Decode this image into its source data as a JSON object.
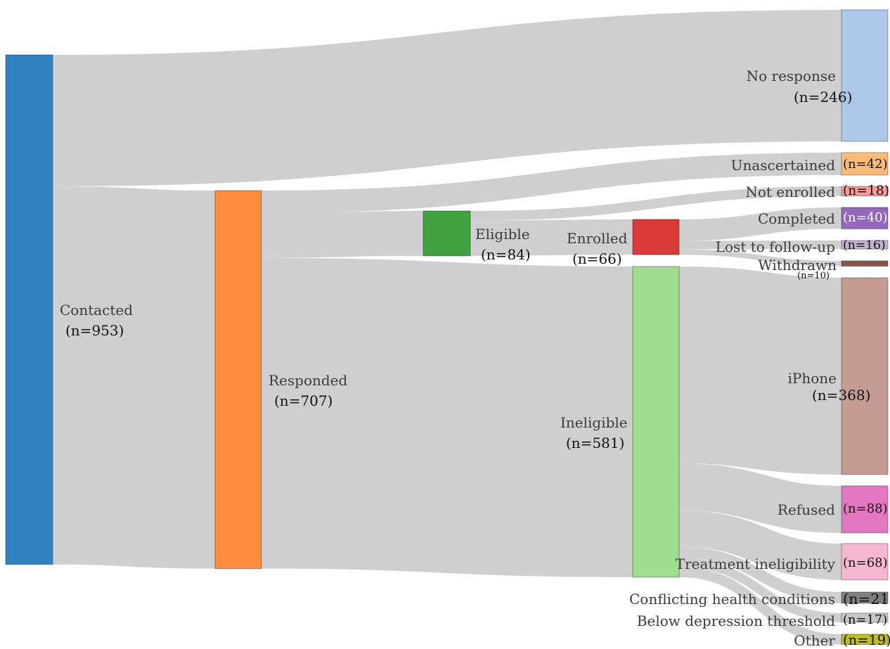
{
  "diagram": {
    "type": "sankey",
    "nodes": [
      {
        "id": "contacted",
        "label": "Contacted",
        "count": "(n=953)",
        "value": 953,
        "color": "#3182bd"
      },
      {
        "id": "responded",
        "label": "Responded",
        "count": "(n=707)",
        "value": 707,
        "color": "#fd8d3c"
      },
      {
        "id": "eligible",
        "label": "Eligible",
        "count": "(n=84)",
        "value": 84,
        "color": "#41a040"
      },
      {
        "id": "enrolled",
        "label": "Enrolled",
        "count": "(n=66)",
        "value": 66,
        "color": "#d83a3a"
      },
      {
        "id": "ineligible",
        "label": "Ineligible",
        "count": "(n=581)",
        "value": 581,
        "color": "#a1dd90"
      },
      {
        "id": "no_response",
        "label": "No response",
        "count": "(n=246)",
        "value": 246,
        "color": "#aec7e8"
      },
      {
        "id": "unascertained",
        "label": "Unascertained",
        "count": "(n=42)",
        "value": 42,
        "color": "#ffbb78"
      },
      {
        "id": "not_enrolled",
        "label": "Not enrolled",
        "count": "(n=18)",
        "value": 18,
        "color": "#ff9896"
      },
      {
        "id": "completed",
        "label": "Completed",
        "count": "(n=40)",
        "value": 40,
        "color": "#9467bd"
      },
      {
        "id": "lost",
        "label": "Lost to follow-up",
        "count": "(n=16)",
        "value": 16,
        "color": "#c5b0d5"
      },
      {
        "id": "withdrawn",
        "label": "Withdrawn",
        "count": "(n=10)",
        "value": 10,
        "color": "#8c564b"
      },
      {
        "id": "iphone",
        "label": "iPhone",
        "count": "(n=368)",
        "value": 368,
        "color": "#c49c94"
      },
      {
        "id": "refused",
        "label": "Refused",
        "count": "(n=88)",
        "value": 88,
        "color": "#e377c2"
      },
      {
        "id": "treatment",
        "label": "Treatment ineligibility",
        "count": "(n=68)",
        "value": 68,
        "color": "#f7b6d2"
      },
      {
        "id": "conflicting",
        "label": "Conflicting health conditions",
        "count": "(n=21)",
        "value": 21,
        "color": "#7f7f7f"
      },
      {
        "id": "below",
        "label": "Below depression threshold",
        "count": "(n=17)",
        "value": 17,
        "color": "#c7c7c7"
      },
      {
        "id": "other",
        "label": "Other",
        "count": "(n=19)",
        "value": 19,
        "color": "#bcbd22"
      }
    ],
    "links": [
      {
        "source": "contacted",
        "target": "no_response",
        "value": 246
      },
      {
        "source": "contacted",
        "target": "responded",
        "value": 707
      },
      {
        "source": "responded",
        "target": "unascertained",
        "value": 42
      },
      {
        "source": "responded",
        "target": "eligible",
        "value": 84
      },
      {
        "source": "responded",
        "target": "ineligible",
        "value": 581
      },
      {
        "source": "eligible",
        "target": "not_enrolled",
        "value": 18
      },
      {
        "source": "eligible",
        "target": "enrolled",
        "value": 66
      },
      {
        "source": "enrolled",
        "target": "completed",
        "value": 40
      },
      {
        "source": "enrolled",
        "target": "lost",
        "value": 16
      },
      {
        "source": "enrolled",
        "target": "withdrawn",
        "value": 10
      },
      {
        "source": "ineligible",
        "target": "iphone",
        "value": 368
      },
      {
        "source": "ineligible",
        "target": "refused",
        "value": 88
      },
      {
        "source": "ineligible",
        "target": "treatment",
        "value": 68
      },
      {
        "source": "ineligible",
        "target": "conflicting",
        "value": 21
      },
      {
        "source": "ineligible",
        "target": "below",
        "value": 17
      },
      {
        "source": "ineligible",
        "target": "other",
        "value": 19
      }
    ],
    "link_color": "#cccccc"
  }
}
